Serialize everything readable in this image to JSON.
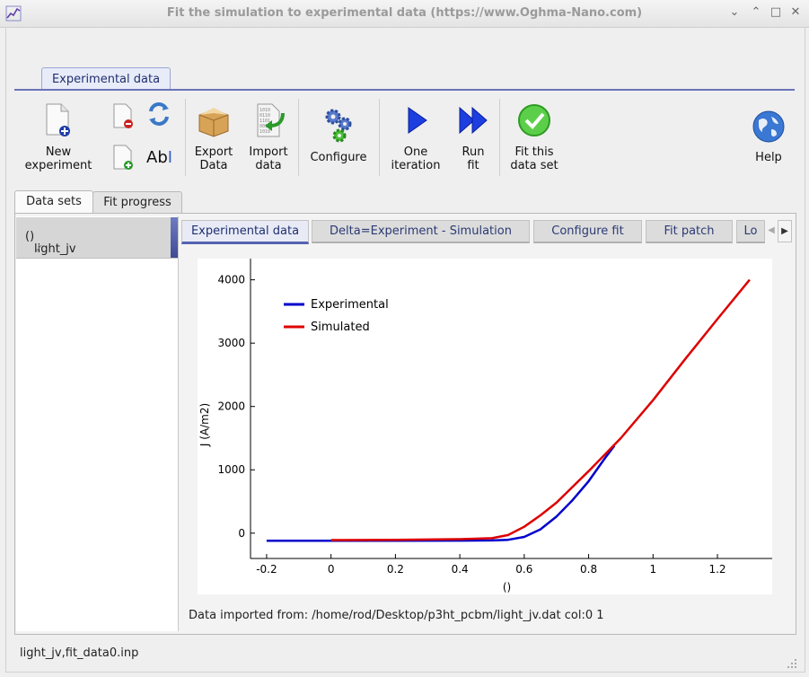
{
  "window": {
    "title": "Fit the simulation to experimental data (https://www.Oghma-Nano.com)",
    "controls": [
      "minimize",
      "maximize",
      "restore",
      "close"
    ]
  },
  "ribbon": {
    "tab_label": "Experimental data",
    "buttons": {
      "new_experiment": "New\nexperiment",
      "export_data": "Export\nData",
      "import_data": "Import\ndata",
      "configure": "Configure",
      "one_iteration": "One\niteration",
      "run_fit": "Run\nfit",
      "fit_this_data_set": "Fit this\ndata set",
      "help": "Help",
      "rename_label": "Ab"
    }
  },
  "main_tabs": [
    "Data sets",
    "Fit progress"
  ],
  "data_sets": [
    {
      "label": "light_jv",
      "status_icon": "✓"
    }
  ],
  "inner_tabs": [
    "Experimental data",
    "Delta=Experiment - Simulation",
    "Configure fit",
    "Fit patch",
    "Lo"
  ],
  "colors": {
    "experimental": "#0000cc",
    "simulated": "#dd0000",
    "accent": "#5563b0"
  },
  "chart_data": {
    "type": "line",
    "title": "",
    "xlabel": "()",
    "ylabel": "J (A/m2)",
    "xlim": [
      -0.25,
      1.37
    ],
    "ylim": [
      -400,
      4250
    ],
    "xticks": [
      -0.2,
      0,
      0.2,
      0.4,
      0.6,
      0.8,
      1,
      1.2
    ],
    "xtick_labels": [
      "-0.2",
      "0",
      "0.2",
      "0.4",
      "0.6",
      "0.8",
      "1",
      "1.2"
    ],
    "yticks": [
      0,
      1000,
      2000,
      3000,
      4000
    ],
    "ytick_labels": [
      "0",
      "1000",
      "2000",
      "3000",
      "4000"
    ],
    "grid": false,
    "legend_position": "top-left",
    "series": [
      {
        "name": "Experimental",
        "color": "#0000cc",
        "x": [
          -0.2,
          0.0,
          0.2,
          0.4,
          0.5,
          0.55,
          0.6,
          0.65,
          0.7,
          0.75,
          0.8,
          0.85,
          0.88
        ],
        "y": [
          -120,
          -120,
          -120,
          -118,
          -115,
          -105,
          -60,
          60,
          260,
          520,
          820,
          1180,
          1380
        ]
      },
      {
        "name": "Simulated",
        "color": "#dd0000",
        "x": [
          0.0,
          0.2,
          0.4,
          0.5,
          0.55,
          0.6,
          0.65,
          0.7,
          0.8,
          0.9,
          1.0,
          1.1,
          1.2,
          1.3
        ],
        "y": [
          -110,
          -105,
          -95,
          -80,
          -30,
          100,
          280,
          480,
          980,
          1500,
          2100,
          2750,
          3380,
          4000
        ]
      }
    ]
  },
  "plot_footer": "Data imported from: /home/rod/Desktop/p3ht_pcbm/light_jv.dat col:0 1",
  "status_bar": "light_jv,fit_data0.inp"
}
